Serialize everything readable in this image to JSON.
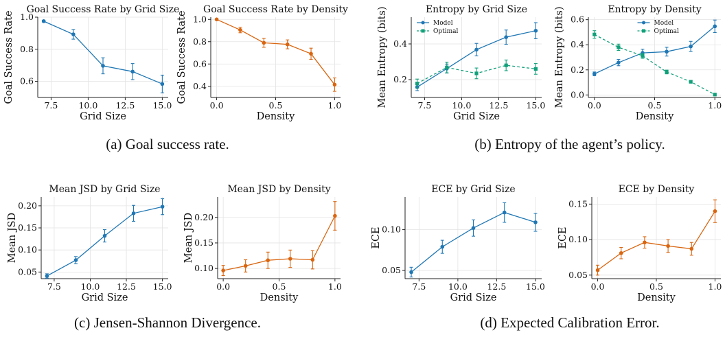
{
  "colors": {
    "blue": "#1f77b4",
    "orange": "#d9650f",
    "green": "#12a07a",
    "grid": "#e3e3e3"
  },
  "captions": [
    "(a) Goal success rate.",
    "(b) Entropy of the agent’s policy.",
    "(c) Jensen-Shannon Divergence.",
    "(d) Expected Calibration Error."
  ],
  "chart_data": [
    {
      "type": "line",
      "title": "Goal Success Rate by Grid Size",
      "xlabel": "Grid Size",
      "ylabel": "Goal Success Rate",
      "xlim": [
        6.6,
        15.4
      ],
      "ylim": [
        0.5,
        1.0
      ],
      "xticks": [
        7.5,
        10.0,
        12.5,
        15.0
      ],
      "yticks": [
        0.6,
        0.8,
        1.0
      ],
      "grid": true,
      "series": [
        {
          "color": "blue",
          "style": "solid",
          "x": [
            7,
            9,
            11,
            13,
            15
          ],
          "y": [
            0.975,
            0.893,
            0.697,
            0.661,
            0.584
          ],
          "err": [
            0.005,
            0.03,
            0.05,
            0.05,
            0.055
          ]
        }
      ]
    },
    {
      "type": "line",
      "title": "Goal Success Rate by Density",
      "xlabel": "Density",
      "ylabel": "Goal Success Rate",
      "xlim": [
        -0.05,
        1.05
      ],
      "ylim": [
        0.3,
        1.02
      ],
      "xticks": [
        0.0,
        0.5,
        1.0
      ],
      "yticks": [
        0.4,
        0.6,
        0.8,
        1.0
      ],
      "grid": true,
      "series": [
        {
          "color": "orange",
          "style": "solid",
          "x": [
            0.0,
            0.2,
            0.4,
            0.6,
            0.8,
            1.0
          ],
          "y": [
            1.0,
            0.905,
            0.79,
            0.776,
            0.692,
            0.415
          ],
          "err": [
            0.0,
            0.025,
            0.04,
            0.04,
            0.05,
            0.06
          ]
        }
      ]
    },
    {
      "type": "line",
      "title": "Entropy by Grid Size",
      "xlabel": "Grid Size",
      "ylabel": "Mean Entropy (bits)",
      "xlim": [
        6.6,
        15.4
      ],
      "ylim": [
        0.1,
        0.55
      ],
      "xticks": [
        7.5,
        10.0,
        12.5,
        15.0
      ],
      "yticks": [
        0.2,
        0.4
      ],
      "grid": true,
      "legend": {
        "position": "top-left",
        "entries": [
          "Model",
          "Optimal"
        ]
      },
      "series": [
        {
          "name": "Model",
          "color": "blue",
          "style": "solid",
          "x": [
            7,
            9,
            11,
            13,
            15
          ],
          "y": [
            0.158,
            0.262,
            0.368,
            0.438,
            0.474
          ],
          "err": [
            0.02,
            0.025,
            0.035,
            0.04,
            0.045
          ]
        },
        {
          "name": "Optimal",
          "color": "green",
          "style": "dashed",
          "x": [
            7,
            9,
            11,
            13,
            15
          ],
          "y": [
            0.178,
            0.268,
            0.235,
            0.28,
            0.26
          ],
          "err": [
            0.025,
            0.03,
            0.03,
            0.03,
            0.03
          ]
        }
      ]
    },
    {
      "type": "line",
      "title": "Entropy by Density",
      "xlabel": "Density",
      "ylabel": "Mean Entropy (bits)",
      "xlim": [
        -0.05,
        1.05
      ],
      "ylim": [
        -0.02,
        0.62
      ],
      "xticks": [
        0.0,
        0.5,
        1.0
      ],
      "yticks": [
        0.0,
        0.2,
        0.4,
        0.6
      ],
      "grid": true,
      "legend": {
        "position": "top-center",
        "entries": [
          "Model",
          "Optimal"
        ]
      },
      "series": [
        {
          "name": "Model",
          "color": "blue",
          "style": "solid",
          "x": [
            0.0,
            0.2,
            0.4,
            0.6,
            0.8,
            1.0
          ],
          "y": [
            0.168,
            0.258,
            0.335,
            0.345,
            0.387,
            0.547
          ],
          "err": [
            0.015,
            0.025,
            0.03,
            0.035,
            0.04,
            0.05
          ]
        },
        {
          "name": "Optimal",
          "color": "green",
          "style": "dashed",
          "x": [
            0.0,
            0.2,
            0.4,
            0.6,
            0.8,
            1.0
          ],
          "y": [
            0.482,
            0.38,
            0.312,
            0.183,
            0.105,
            0.003
          ],
          "err": [
            0.03,
            0.025,
            0.02,
            0.015,
            0.01,
            0.005
          ]
        }
      ]
    },
    {
      "type": "line",
      "title": "Mean JSD by Grid Size",
      "xlabel": "Grid Size",
      "ylabel": "Mean JSD",
      "xlim": [
        6.6,
        15.4
      ],
      "ylim": [
        0.035,
        0.22
      ],
      "xticks": [
        7.5,
        10.0,
        12.5,
        15.0
      ],
      "yticks": [
        0.05,
        0.1,
        0.15,
        0.2
      ],
      "grid": true,
      "series": [
        {
          "color": "blue",
          "style": "solid",
          "x": [
            7,
            9,
            11,
            13,
            15
          ],
          "y": [
            0.041,
            0.077,
            0.132,
            0.183,
            0.198
          ],
          "err": [
            0.005,
            0.008,
            0.014,
            0.018,
            0.018
          ]
        }
      ]
    },
    {
      "type": "line",
      "title": "Mean JSD by Density",
      "xlabel": "Density",
      "ylabel": "Mean JSD",
      "xlim": [
        -0.05,
        1.05
      ],
      "ylim": [
        0.08,
        0.24
      ],
      "xticks": [
        0.0,
        0.5,
        1.0
      ],
      "yticks": [
        0.1,
        0.15,
        0.2
      ],
      "grid": true,
      "series": [
        {
          "color": "orange",
          "style": "solid",
          "x": [
            0.0,
            0.2,
            0.4,
            0.6,
            0.8,
            1.0
          ],
          "y": [
            0.096,
            0.105,
            0.116,
            0.119,
            0.117,
            0.203
          ],
          "err": [
            0.01,
            0.012,
            0.016,
            0.017,
            0.018,
            0.028
          ]
        }
      ]
    },
    {
      "type": "line",
      "title": "ECE by Grid Size",
      "xlabel": "Grid Size",
      "ylabel": "ECE",
      "xlim": [
        6.6,
        15.4
      ],
      "ylim": [
        0.04,
        0.14
      ],
      "xticks": [
        7.5,
        10.0,
        12.5,
        15.0
      ],
      "yticks": [
        0.05,
        0.1
      ],
      "grid": true,
      "series": [
        {
          "color": "blue",
          "style": "solid",
          "x": [
            7,
            9,
            11,
            13,
            15
          ],
          "y": [
            0.048,
            0.079,
            0.102,
            0.121,
            0.109
          ],
          "err": [
            0.006,
            0.008,
            0.01,
            0.012,
            0.011
          ]
        }
      ]
    },
    {
      "type": "line",
      "title": "ECE by Density",
      "xlabel": "Density",
      "ylabel": "ECE",
      "xlim": [
        -0.05,
        1.05
      ],
      "ylim": [
        0.045,
        0.16
      ],
      "xticks": [
        0.0,
        0.5,
        1.0
      ],
      "yticks": [
        0.05,
        0.1,
        0.15
      ],
      "grid": true,
      "series": [
        {
          "color": "orange",
          "style": "solid",
          "x": [
            0.0,
            0.2,
            0.4,
            0.6,
            0.8,
            1.0
          ],
          "y": [
            0.057,
            0.081,
            0.096,
            0.091,
            0.087,
            0.14
          ],
          "err": [
            0.007,
            0.008,
            0.008,
            0.009,
            0.009,
            0.016
          ]
        }
      ]
    }
  ]
}
